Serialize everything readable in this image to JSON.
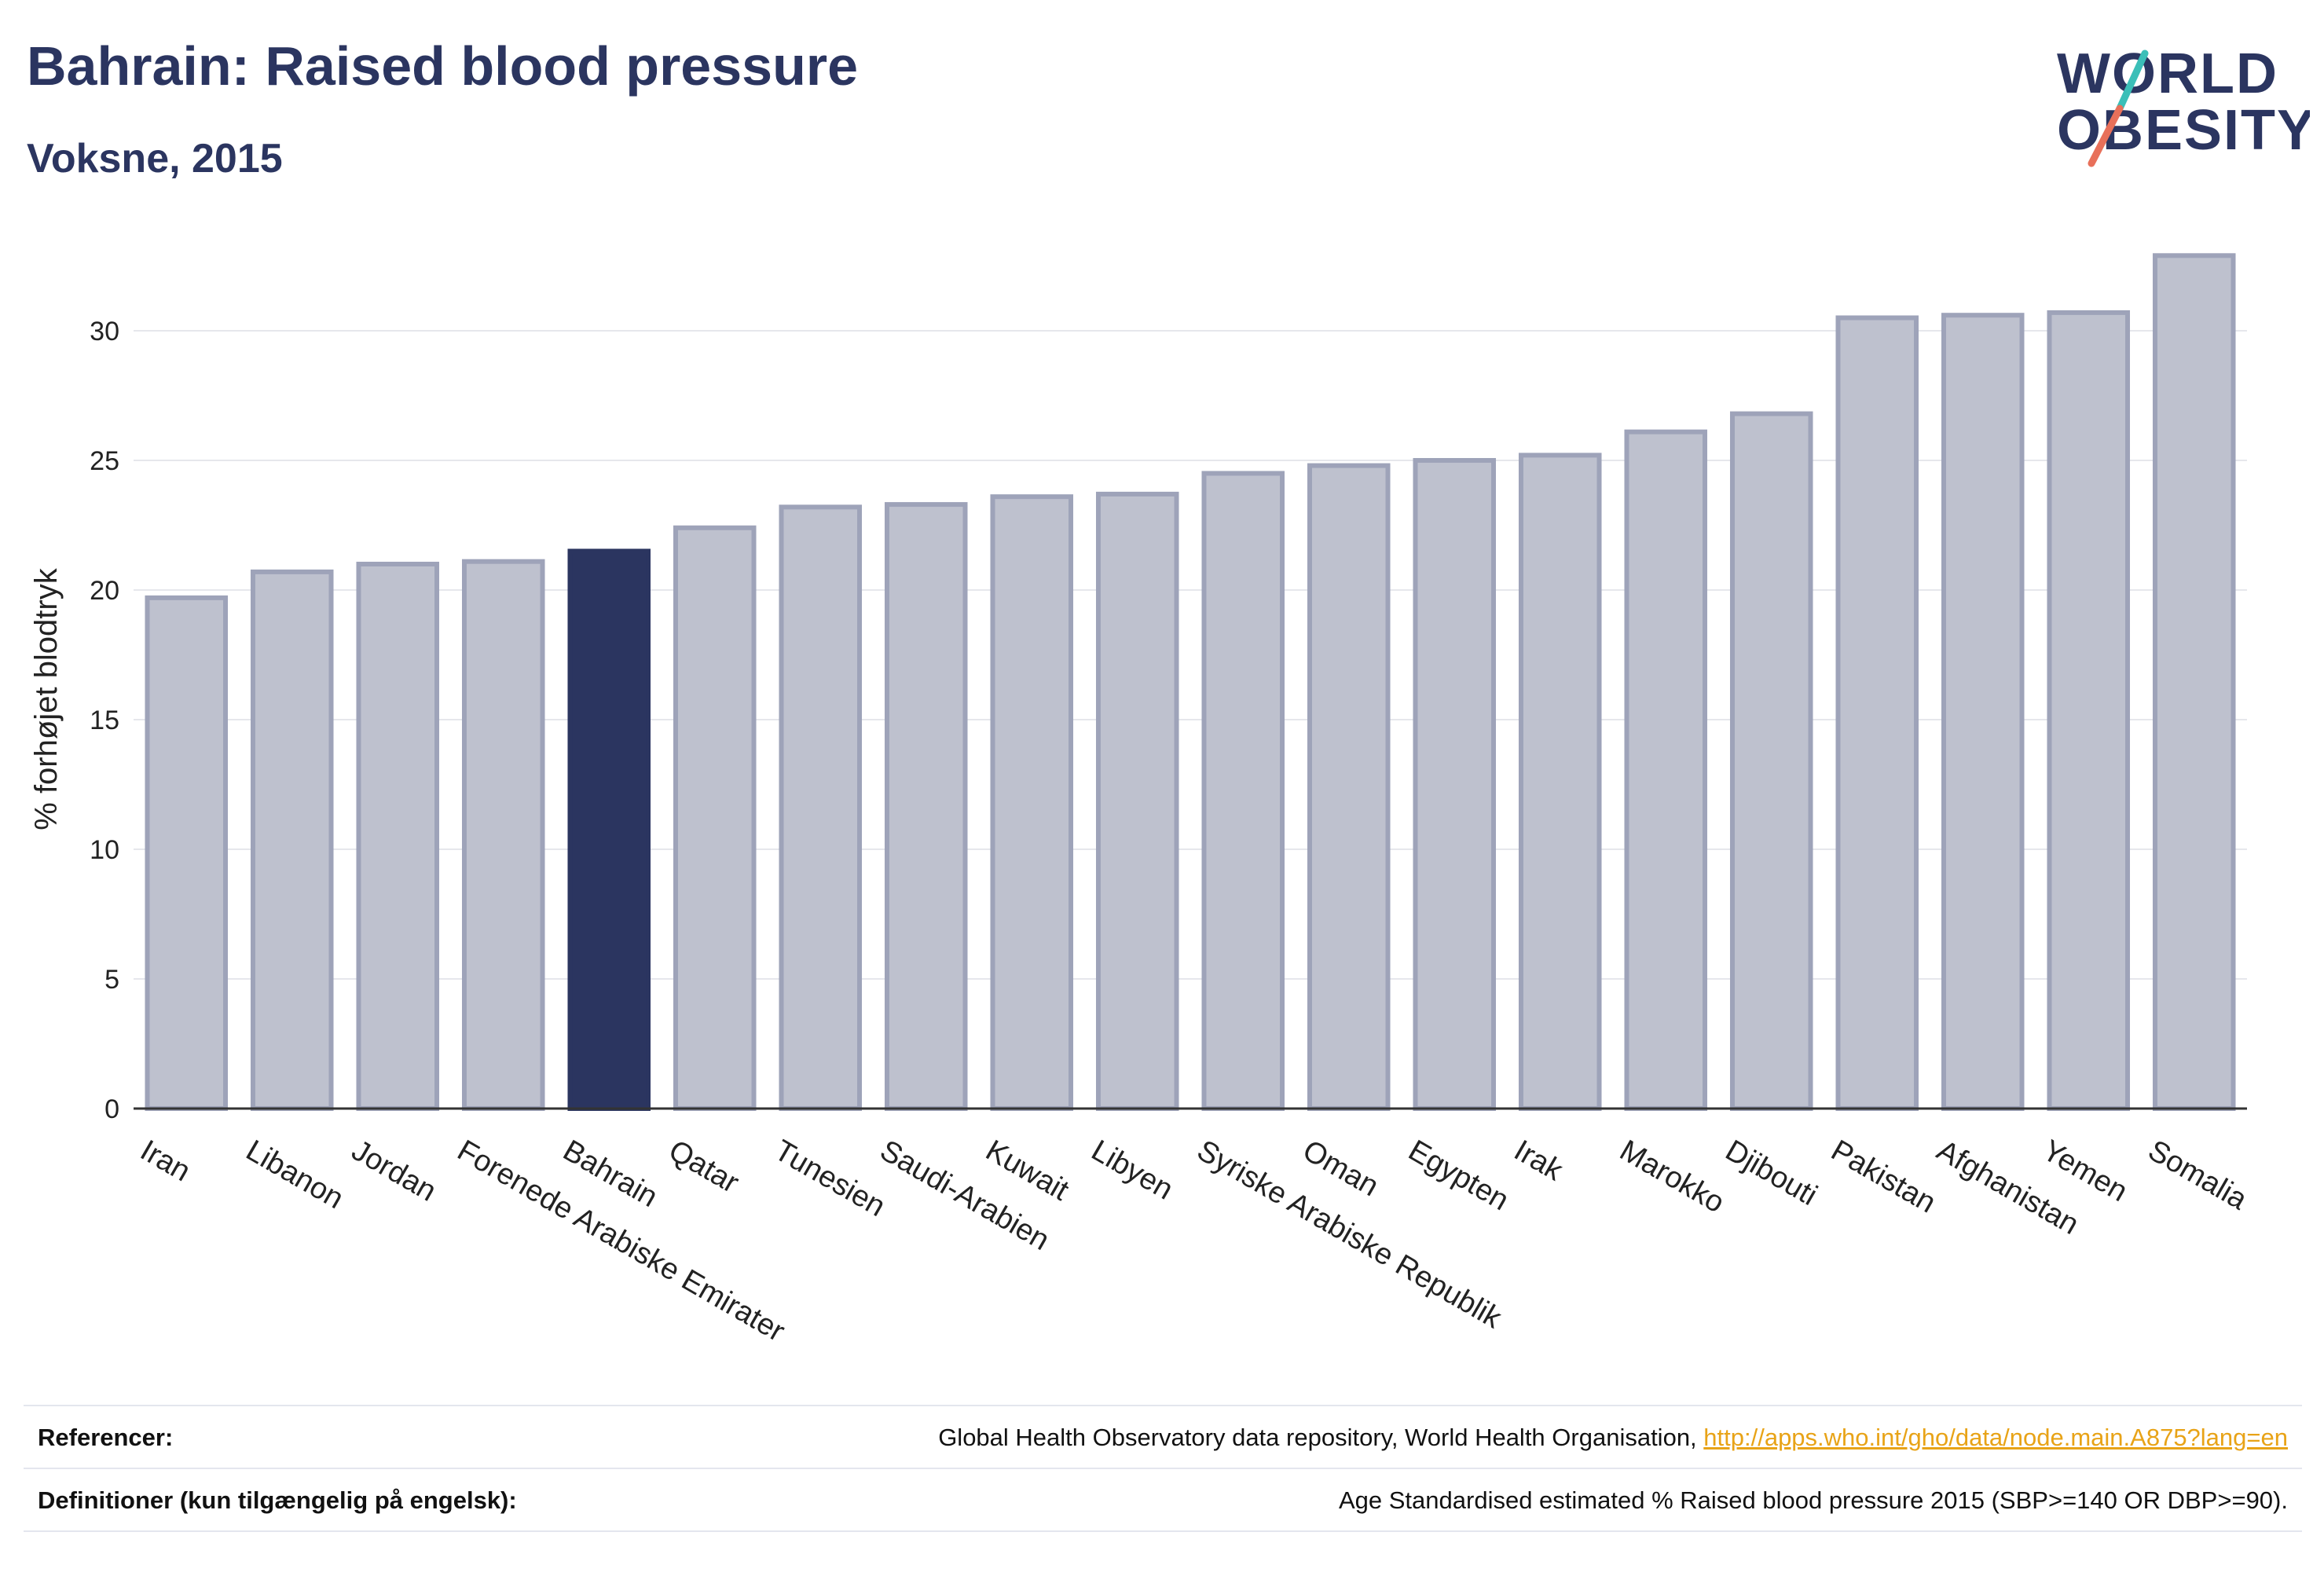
{
  "header": {
    "title": "Bahrain: Raised blood pressure",
    "subtitle": "Voksne, 2015"
  },
  "logo": {
    "line1": "WORLD",
    "line2": "OBESITY",
    "text_color": "#2b3560",
    "slash_top_color": "#3bbfb8",
    "slash_bottom_color": "#e8705a"
  },
  "chart_data": {
    "type": "bar",
    "categories": [
      "Iran",
      "Libanon",
      "Jordan",
      "Forenede Arabiske Emirater",
      "Bahrain",
      "Qatar",
      "Tunesien",
      "Saudi-Arabien",
      "Kuwait",
      "Libyen",
      "Syriske Arabiske Republik",
      "Oman",
      "Egypten",
      "Irak",
      "Marokko",
      "Djibouti",
      "Pakistan",
      "Afghanistan",
      "Yemen",
      "Somalia"
    ],
    "values": [
      19.7,
      20.7,
      21.0,
      21.1,
      21.5,
      22.4,
      23.2,
      23.3,
      23.6,
      23.7,
      24.5,
      24.8,
      25.0,
      25.2,
      26.1,
      26.8,
      30.5,
      30.6,
      30.7,
      32.9
    ],
    "highlight": "Bahrain",
    "xlabel": "",
    "ylabel": "% forhøjet blodtryk",
    "ylim": [
      0,
      34
    ],
    "yticks": [
      0,
      5,
      10,
      15,
      20,
      25,
      30
    ],
    "grid": true,
    "colors": {
      "bar": "#bec1ce",
      "bar_edge": "#9ea3b9",
      "highlight": "#2b3560",
      "grid": "#e6e7ec",
      "axis": "#333333"
    }
  },
  "footer": {
    "references_label": "Referencer:",
    "references_text": "Global Health Observatory data repository, World Health Organisation, ",
    "references_link": "http://apps.who.int/gho/data/node.main.A875?lang=en",
    "definitions_label": "Definitioner (kun tilgængelig på engelsk):",
    "definitions_text": "Age Standardised estimated % Raised blood pressure 2015 (SBP>=140 OR DBP>=90)."
  }
}
